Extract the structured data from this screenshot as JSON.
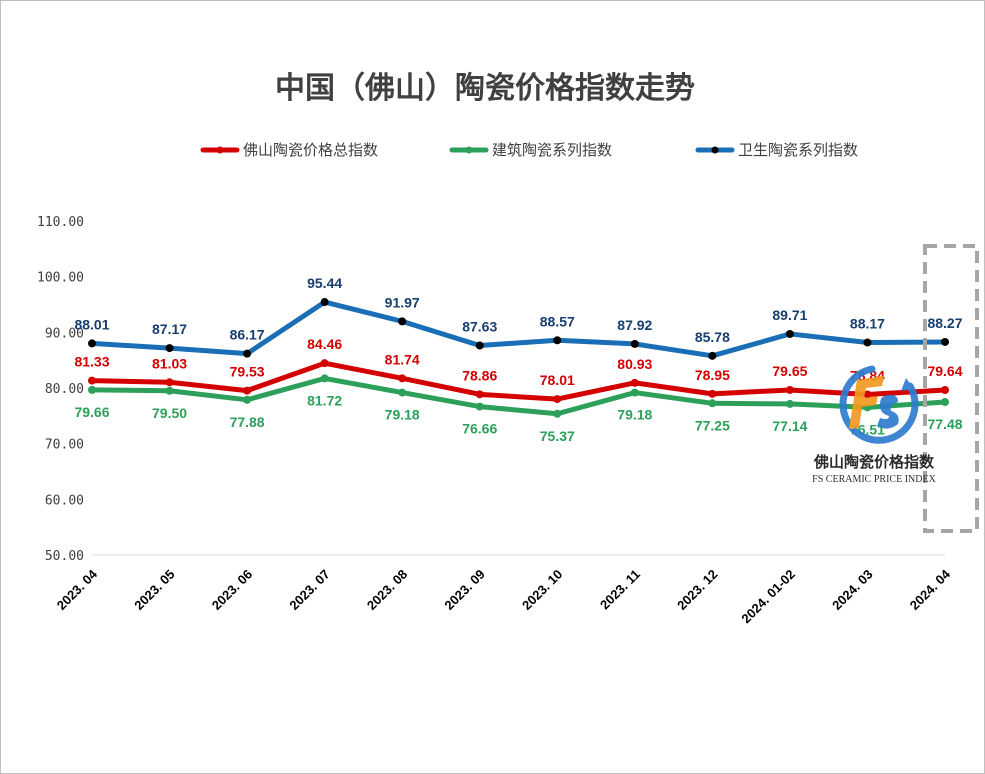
{
  "chart_data": {
    "type": "line",
    "title": "中国（佛山）陶瓷价格指数走势",
    "categories": [
      "2023. 04",
      "2023. 05",
      "2023. 06",
      "2023. 07",
      "2023. 08",
      "2023. 09",
      "2023. 10",
      "2023. 11",
      "2023. 12",
      "2024. 01-02",
      "2024. 03",
      "2024. 04"
    ],
    "yticks": [
      "110.00",
      "100.00",
      "90.00",
      "80.00",
      "70.00",
      "60.00",
      "50.00"
    ],
    "ylim": [
      50,
      110
    ],
    "legend_position": "top",
    "grid": false,
    "series": [
      {
        "name": "佛山陶瓷价格总指数",
        "color": "#d40000",
        "values": [
          81.33,
          81.03,
          79.53,
          84.46,
          81.74,
          78.86,
          78.01,
          80.93,
          78.95,
          79.65,
          78.84,
          79.64
        ],
        "labels": [
          "81.33",
          "81.03",
          "79.53",
          "84.46",
          "81.74",
          "78.86",
          "78.01",
          "80.93",
          "78.95",
          "79.65",
          "78.84",
          "79.64"
        ],
        "label_side": "above"
      },
      {
        "name": "建筑陶瓷系列指数",
        "color": "#2ca05a",
        "values": [
          79.66,
          79.5,
          77.88,
          81.72,
          79.18,
          76.66,
          75.37,
          79.18,
          77.25,
          77.14,
          76.51,
          77.48
        ],
        "labels": [
          "79.66",
          "79.50",
          "77.88",
          "81.72",
          "79.18",
          "76.66",
          "75.37",
          "79.18",
          "77.25",
          "77.14",
          "76.51",
          "77.48"
        ],
        "label_side": "below"
      },
      {
        "name": "卫生陶瓷系列指数",
        "color": "#1a6eb5",
        "label_color": "#163e6e",
        "values": [
          88.01,
          87.17,
          86.17,
          95.44,
          91.97,
          87.63,
          88.57,
          87.92,
          85.78,
          89.71,
          88.17,
          88.27
        ],
        "labels": [
          "88.01",
          "87.17",
          "86.17",
          "95.44",
          "91.97",
          "87.63",
          "88.57",
          "87.92",
          "85.78",
          "89.71",
          "88.17",
          "88.27"
        ],
        "label_side": "above"
      }
    ]
  },
  "logo": {
    "name_cn": "佛山陶瓷价格指数",
    "name_en": "FS CERAMIC PRICE INDEX"
  }
}
